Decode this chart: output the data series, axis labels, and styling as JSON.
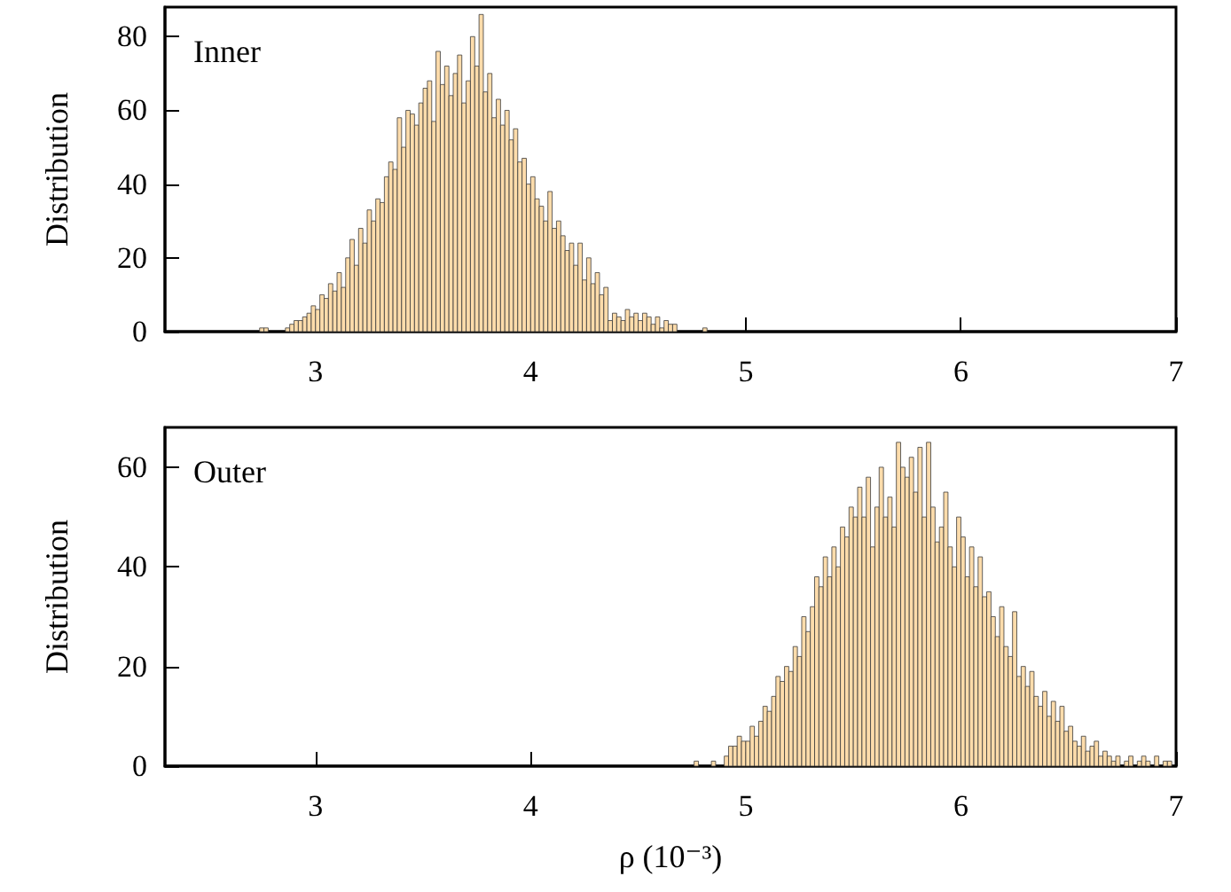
{
  "chart_data": [
    {
      "type": "histogram",
      "ylabel": "Distribution",
      "annotations": [
        "Inner"
      ],
      "color": "#fddcab",
      "xlim": [
        2.3,
        7
      ],
      "xticks": [
        3,
        4,
        5,
        6,
        7
      ],
      "ylim": [
        0,
        88
      ],
      "yticks": [
        0,
        20,
        40,
        60,
        80
      ],
      "bins": [
        2.74,
        2.76,
        2.78,
        2.86,
        2.88,
        2.9,
        2.92,
        2.94,
        2.96,
        2.98,
        3.0,
        3.02,
        3.04,
        3.06,
        3.08,
        3.1,
        3.12,
        3.14,
        3.16,
        3.18,
        3.2,
        3.22,
        3.24,
        3.26,
        3.28,
        3.3,
        3.32,
        3.34,
        3.36,
        3.38,
        3.4,
        3.42,
        3.44,
        3.46,
        3.48,
        3.5,
        3.52,
        3.54,
        3.56,
        3.58,
        3.6,
        3.62,
        3.64,
        3.66,
        3.68,
        3.7,
        3.72,
        3.74,
        3.76,
        3.78,
        3.8,
        3.82,
        3.84,
        3.86,
        3.88,
        3.9,
        3.92,
        3.94,
        3.96,
        3.98,
        4.0,
        4.02,
        4.04,
        4.06,
        4.08,
        4.1,
        4.12,
        4.14,
        4.16,
        4.18,
        4.2,
        4.22,
        4.24,
        4.26,
        4.28,
        4.3,
        4.32,
        4.34,
        4.36,
        4.38,
        4.4,
        4.42,
        4.44,
        4.46,
        4.48,
        4.5,
        4.52,
        4.54,
        4.56,
        4.58,
        4.6,
        4.62,
        4.64,
        4.66,
        4.68,
        4.8,
        4.82
      ],
      "values": [
        1,
        1,
        0,
        1,
        2,
        3,
        3,
        4,
        5,
        7,
        6,
        10,
        9,
        13,
        11,
        16,
        12,
        20,
        25,
        18,
        28,
        24,
        33,
        30,
        36,
        35,
        42,
        46,
        44,
        58,
        50,
        60,
        59,
        56,
        62,
        66,
        68,
        57,
        76,
        67,
        72,
        64,
        70,
        75,
        62,
        68,
        80,
        72,
        86,
        65,
        70,
        58,
        63,
        56,
        60,
        52,
        55,
        46,
        47,
        40,
        42,
        36,
        34,
        30,
        38,
        28,
        30,
        26,
        22,
        24,
        18,
        24,
        14,
        20,
        13,
        16,
        10,
        12,
        3,
        5,
        4,
        3,
        6,
        4,
        5,
        3,
        5,
        4,
        2,
        4,
        1,
        3,
        2,
        2,
        0,
        1
      ]
    },
    {
      "type": "histogram",
      "xlabel": "ρ (10⁻³)",
      "ylabel": "Distribution",
      "annotations": [
        "Outer"
      ],
      "color": "#fddcab",
      "xlim": [
        2.3,
        7
      ],
      "xticks": [
        3,
        4,
        5,
        6,
        7
      ],
      "ylim": [
        0,
        68
      ],
      "yticks": [
        0,
        20,
        40,
        60
      ],
      "bins": [
        4.74,
        4.76,
        4.78,
        4.8,
        4.82,
        4.84,
        4.86,
        4.88,
        4.9,
        4.92,
        4.94,
        4.96,
        4.98,
        5.0,
        5.02,
        5.04,
        5.06,
        5.08,
        5.1,
        5.12,
        5.14,
        5.16,
        5.18,
        5.2,
        5.22,
        5.24,
        5.26,
        5.28,
        5.3,
        5.32,
        5.34,
        5.36,
        5.38,
        5.4,
        5.42,
        5.44,
        5.46,
        5.48,
        5.5,
        5.52,
        5.54,
        5.56,
        5.58,
        5.6,
        5.62,
        5.64,
        5.66,
        5.68,
        5.7,
        5.72,
        5.74,
        5.76,
        5.78,
        5.8,
        5.82,
        5.84,
        5.86,
        5.88,
        5.9,
        5.92,
        5.94,
        5.96,
        5.98,
        6.0,
        6.02,
        6.04,
        6.06,
        6.08,
        6.1,
        6.12,
        6.14,
        6.16,
        6.18,
        6.2,
        6.22,
        6.24,
        6.26,
        6.28,
        6.3,
        6.32,
        6.34,
        6.36,
        6.38,
        6.4,
        6.42,
        6.44,
        6.46,
        6.48,
        6.5,
        6.52,
        6.54,
        6.56,
        6.58,
        6.6,
        6.62,
        6.64,
        6.66,
        6.68,
        6.7,
        6.72,
        6.74,
        6.76,
        6.78,
        6.8,
        6.82,
        6.84,
        6.86,
        6.88,
        6.9,
        6.92,
        6.94,
        6.96,
        6.98,
        7.0
      ],
      "values": [
        0,
        1,
        0,
        0,
        0,
        1,
        0,
        0,
        2,
        4,
        4,
        6,
        5,
        5,
        8,
        6,
        9,
        12,
        11,
        14,
        18,
        17,
        20,
        19,
        24,
        22,
        30,
        27,
        32,
        38,
        36,
        42,
        38,
        44,
        40,
        48,
        46,
        52,
        50,
        56,
        50,
        58,
        44,
        52,
        60,
        50,
        54,
        48,
        65,
        60,
        58,
        62,
        55,
        64,
        50,
        65,
        52,
        45,
        48,
        55,
        44,
        40,
        50,
        46,
        38,
        44,
        36,
        42,
        34,
        35,
        30,
        26,
        32,
        24,
        22,
        31,
        18,
        20,
        16,
        19,
        14,
        12,
        15,
        10,
        13,
        9,
        12,
        7,
        8,
        5,
        4,
        6,
        3,
        4,
        5,
        2,
        3,
        2,
        1,
        2,
        0,
        1,
        2,
        0,
        1,
        2,
        1,
        0,
        2,
        0,
        1,
        1,
        0
      ]
    }
  ]
}
